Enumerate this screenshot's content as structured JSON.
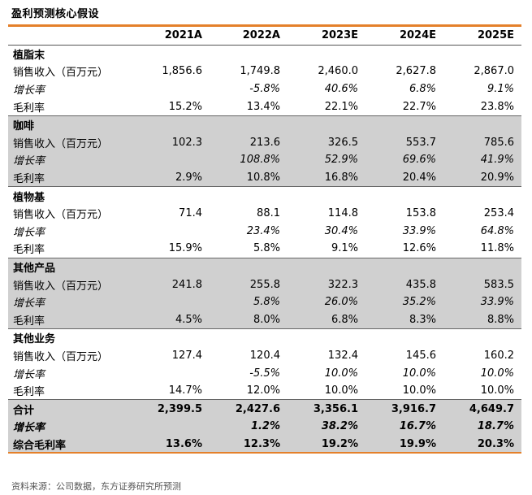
{
  "title": "盈利预测核心假设",
  "header": [
    "",
    "2021A",
    "2022A",
    "2023E",
    "2024E",
    "2025E"
  ],
  "rows": [
    {
      "type": "sect",
      "shade": false,
      "cells": [
        "植脂末",
        "",
        "",
        "",
        "",
        ""
      ]
    },
    {
      "type": "normal",
      "shade": false,
      "cells": [
        "销售收入（百万元）",
        "1,856.6",
        "1,749.8",
        "2,460.0",
        "2,627.8",
        "2,867.0"
      ]
    },
    {
      "type": "growth",
      "shade": false,
      "cells": [
        "增长率",
        "",
        "-5.8%",
        "40.6%",
        "6.8%",
        "9.1%"
      ]
    },
    {
      "type": "normal",
      "shade": false,
      "cells": [
        "毛利率",
        "15.2%",
        "13.4%",
        "22.1%",
        "22.7%",
        "23.8%"
      ]
    },
    {
      "type": "sect",
      "shade": true,
      "cells": [
        "咖啡",
        "",
        "",
        "",
        "",
        ""
      ]
    },
    {
      "type": "normal",
      "shade": true,
      "cells": [
        "销售收入（百万元）",
        "102.3",
        "213.6",
        "326.5",
        "553.7",
        "785.6"
      ]
    },
    {
      "type": "growth",
      "shade": true,
      "cells": [
        "增长率",
        "",
        "108.8%",
        "52.9%",
        "69.6%",
        "41.9%"
      ]
    },
    {
      "type": "normal",
      "shade": true,
      "cells": [
        "毛利率",
        "2.9%",
        "10.8%",
        "16.8%",
        "20.4%",
        "20.9%"
      ]
    },
    {
      "type": "sect",
      "shade": false,
      "cells": [
        "植物基",
        "",
        "",
        "",
        "",
        ""
      ]
    },
    {
      "type": "normal",
      "shade": false,
      "cells": [
        "销售收入（百万元）",
        "71.4",
        "88.1",
        "114.8",
        "153.8",
        "253.4"
      ]
    },
    {
      "type": "growth",
      "shade": false,
      "cells": [
        "增长率",
        "",
        "23.4%",
        "30.4%",
        "33.9%",
        "64.8%"
      ]
    },
    {
      "type": "normal",
      "shade": false,
      "cells": [
        "毛利率",
        "15.9%",
        "5.8%",
        "9.1%",
        "12.6%",
        "11.8%"
      ]
    },
    {
      "type": "sect",
      "shade": true,
      "cells": [
        "其他产品",
        "",
        "",
        "",
        "",
        ""
      ]
    },
    {
      "type": "normal",
      "shade": true,
      "cells": [
        "销售收入（百万元）",
        "241.8",
        "255.8",
        "322.3",
        "435.8",
        "583.5"
      ]
    },
    {
      "type": "growth",
      "shade": true,
      "cells": [
        "增长率",
        "",
        "5.8%",
        "26.0%",
        "35.2%",
        "33.9%"
      ]
    },
    {
      "type": "normal",
      "shade": true,
      "cells": [
        "毛利率",
        "4.5%",
        "8.0%",
        "6.8%",
        "8.3%",
        "8.8%"
      ]
    },
    {
      "type": "sect",
      "shade": false,
      "cells": [
        "其他业务",
        "",
        "",
        "",
        "",
        ""
      ]
    },
    {
      "type": "normal",
      "shade": false,
      "cells": [
        "销售收入（百万元）",
        "127.4",
        "120.4",
        "132.4",
        "145.6",
        "160.2"
      ]
    },
    {
      "type": "growth",
      "shade": false,
      "cells": [
        "增长率",
        "",
        "-5.5%",
        "10.0%",
        "10.0%",
        "10.0%"
      ]
    },
    {
      "type": "normal",
      "shade": false,
      "cells": [
        "毛利率",
        "14.7%",
        "12.0%",
        "10.0%",
        "10.0%",
        "10.0%"
      ]
    },
    {
      "type": "bold",
      "shade": true,
      "cells": [
        "合计",
        "2,399.5",
        "2,427.6",
        "3,356.1",
        "3,916.7",
        "4,649.7"
      ]
    },
    {
      "type": "boldgrowth",
      "shade": true,
      "cells": [
        "增长率",
        "",
        "1.2%",
        "38.2%",
        "16.7%",
        "18.7%"
      ]
    },
    {
      "type": "bold",
      "shade": true,
      "cells": [
        "综合毛利率",
        "13.6%",
        "12.3%",
        "19.2%",
        "19.9%",
        "20.3%"
      ]
    }
  ],
  "source": "资料来源：公司数据，东方证券研究所预测",
  "colors": {
    "accent": "#e4802a",
    "shade": "#d0d0d0"
  }
}
